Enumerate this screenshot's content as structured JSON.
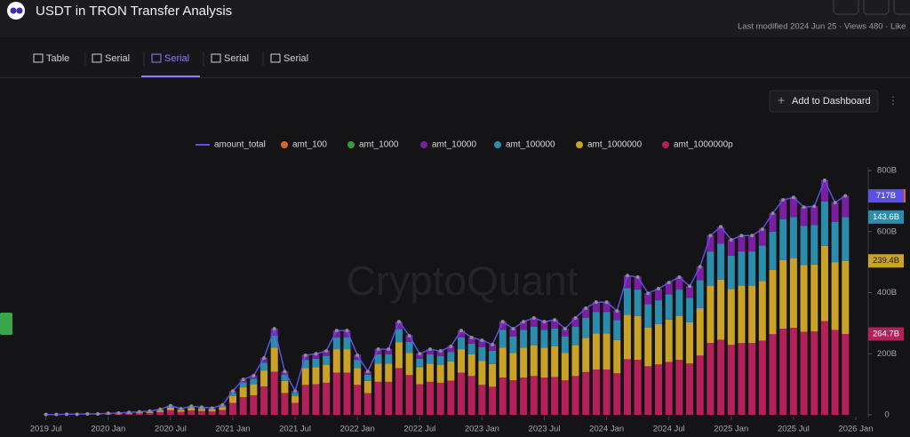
{
  "header": {
    "title": "USDT in TRON Transfer Analysis",
    "meta": "Last modified 2024 Jun 25 · Views 480 · Like"
  },
  "tabs": [
    "Table",
    "Serial",
    "Serial",
    "Serial",
    "Serial"
  ],
  "active_tab": 2,
  "button": "Add to Dashboard",
  "chart_data": {
    "type": "bar",
    "stacked": true,
    "watermark": "CryptoQuant",
    "xlim": [
      "2019-06",
      "2026-01"
    ],
    "xticks": [
      {
        "value": "2019-07",
        "label": "2019 Jul"
      },
      {
        "value": "2020-01",
        "label": "2020 Jan"
      },
      {
        "value": "2020-07",
        "label": "2020 Jul"
      },
      {
        "value": "2021-01",
        "label": "2021 Jan"
      },
      {
        "value": "2021-07",
        "label": "2021 Jul"
      },
      {
        "value": "2022-01",
        "label": "2022 Jan"
      },
      {
        "value": "2022-07",
        "label": "2022 Jul"
      },
      {
        "value": "2023-01",
        "label": "2023 Jan"
      },
      {
        "value": "2023-07",
        "label": "2023 Jul"
      },
      {
        "value": "2024-01",
        "label": "2024 Jan"
      },
      {
        "value": "2024-07",
        "label": "2024 Jul"
      },
      {
        "value": "2025-01",
        "label": "2025 Jan"
      },
      {
        "value": "2025-07",
        "label": "2025 Jul"
      },
      {
        "value": "2026-01",
        "label": "2026 Jan"
      }
    ],
    "ylim": [
      0,
      800
    ],
    "yticks": [
      0,
      {
        "value": 200,
        "label": "200B"
      },
      {
        "value": 400,
        "label": "400B"
      },
      {
        "value": 600,
        "label": "600B"
      },
      {
        "value": 800,
        "label": "800B"
      }
    ],
    "y_axis_side": "right",
    "grid": false,
    "legend_position": "top",
    "x": [
      "2019-07",
      "2019-08",
      "2019-09",
      "2019-10",
      "2019-11",
      "2019-12",
      "2020-01",
      "2020-02",
      "2020-03",
      "2020-04",
      "2020-05",
      "2020-06",
      "2020-07",
      "2020-08",
      "2020-09",
      "2020-10",
      "2020-11",
      "2020-12",
      "2021-01",
      "2021-02",
      "2021-03",
      "2021-04",
      "2021-05",
      "2021-06",
      "2021-07",
      "2021-08",
      "2021-09",
      "2021-10",
      "2021-11",
      "2021-12",
      "2022-01",
      "2022-02",
      "2022-03",
      "2022-04",
      "2022-05",
      "2022-06",
      "2022-07",
      "2022-08",
      "2022-09",
      "2022-10",
      "2022-11",
      "2022-12",
      "2023-01",
      "2023-02",
      "2023-03",
      "2023-04",
      "2023-05",
      "2023-06",
      "2023-07",
      "2023-08",
      "2023-09",
      "2023-10",
      "2023-11",
      "2023-12",
      "2024-01",
      "2024-02",
      "2024-03",
      "2024-04",
      "2024-05",
      "2024-06",
      "2024-07",
      "2024-08",
      "2024-09",
      "2024-10",
      "2024-11",
      "2024-12",
      "2025-01",
      "2025-02",
      "2025-03",
      "2025-04",
      "2025-05",
      "2025-06",
      "2025-07",
      "2025-08",
      "2025-09",
      "2025-10",
      "2025-11",
      "2025-12"
    ],
    "series": [
      {
        "name": "amount_total",
        "type": "line",
        "color": "#5b4fe6",
        "values": [
          1,
          1,
          2,
          2,
          3,
          3,
          5,
          6,
          8,
          10,
          12,
          18,
          30,
          20,
          28,
          25,
          22,
          32,
          78,
          116,
          128,
          186,
          282,
          142,
          78,
          195,
          200,
          209,
          276,
          276,
          195,
          142,
          215,
          215,
          305,
          259,
          200,
          215,
          209,
          224,
          276,
          253,
          244,
          230,
          305,
          282,
          305,
          317,
          305,
          311,
          282,
          317,
          349,
          369,
          369,
          340,
          456,
          451,
          398,
          413,
          433,
          451,
          421,
          485,
          587,
          616,
          573,
          587,
          587,
          608,
          660,
          704,
          712,
          680,
          683,
          768,
          695,
          717
        ],
        "value_labels": [
          null,
          null,
          null,
          null,
          null,
          null,
          null,
          null,
          null,
          null,
          null,
          null,
          null,
          null,
          null,
          null,
          null,
          null,
          null,
          null,
          null,
          null,
          null,
          null,
          null,
          null,
          null,
          null,
          null,
          null,
          null,
          null,
          null,
          null,
          null,
          null,
          null,
          null,
          null,
          null,
          null,
          null,
          null,
          null,
          null,
          null,
          null,
          null,
          null,
          null,
          null,
          null,
          null,
          null,
          null,
          null,
          null,
          null,
          null,
          null,
          null,
          null,
          null,
          null,
          null,
          null,
          null,
          null,
          null,
          null,
          null,
          null,
          null,
          null,
          null,
          null,
          null,
          "717B"
        ]
      },
      {
        "name": "amt_100",
        "color": "#e0622a",
        "values": [
          0.1,
          0.1,
          0.1,
          0.1,
          0.1,
          0.1,
          0.1,
          0.1,
          0.1,
          0.1,
          0.1,
          0.1,
          0.1,
          0.1,
          0.1,
          0.1,
          0.1,
          0.1,
          0.1,
          0.1,
          0.1,
          0.1,
          0.1,
          0.1,
          0.1,
          0.1,
          0.1,
          0.1,
          0.1,
          0.1,
          0.1,
          0.1,
          0.1,
          0.1,
          0.1,
          0.1,
          0.1,
          0.1,
          0.1,
          0.1,
          0.1,
          0.1,
          0.1,
          0.1,
          0.1,
          0.1,
          0.1,
          0.1,
          0.1,
          0.1,
          0.1,
          0.1,
          0.1,
          0.1,
          0.1,
          0.1,
          0.1,
          0.1,
          0.1,
          0.1,
          0.1,
          0.1,
          0.1,
          0.1,
          0.1,
          0.1,
          0.1,
          0.1,
          0.1,
          0.1,
          0.1,
          0.1,
          0.1,
          0.1,
          0.1,
          0.1,
          0.1,
          0.1
        ]
      },
      {
        "name": "amt_1000",
        "color": "#3a9a3a",
        "values": [
          0.5,
          0.5,
          0.5,
          0.5,
          0.5,
          0.5,
          0.5,
          0.5,
          0.5,
          0.5,
          0.5,
          0.5,
          0.5,
          0.5,
          0.5,
          0.5,
          0.5,
          0.5,
          0.5,
          0.5,
          0.5,
          0.5,
          0.5,
          0.5,
          0.5,
          0.5,
          0.5,
          0.5,
          0.5,
          0.5,
          0.5,
          0.5,
          0.5,
          0.5,
          0.5,
          0.5,
          0.5,
          0.5,
          0.5,
          0.5,
          0.5,
          0.5,
          0.5,
          0.5,
          0.5,
          0.5,
          0.5,
          0.5,
          0.5,
          0.5,
          0.5,
          0.5,
          0.5,
          0.5,
          0.5,
          0.5,
          0.5,
          0.5,
          0.5,
          0.5,
          0.5,
          0.5,
          0.5,
          0.5,
          0.5,
          0.5,
          0.5,
          0.5,
          0.5,
          0.5,
          0.5,
          0.5,
          0.5,
          0.5,
          0.5,
          0.5,
          0.5,
          0.5
        ]
      },
      {
        "name": "amt_10000",
        "color": "#7b1fa2",
        "values": [
          0.1,
          0.1,
          0.1,
          0.1,
          0.3,
          0.3,
          0.4,
          0.5,
          0.7,
          0.8,
          1,
          1.4,
          2.4,
          1.6,
          2.2,
          2,
          1.8,
          2.6,
          6,
          9,
          10,
          15,
          23,
          11,
          6,
          16,
          16,
          17,
          22,
          22,
          16,
          11,
          17,
          17,
          24,
          21,
          16,
          17,
          17,
          18,
          22,
          20,
          22,
          21,
          27,
          25,
          27,
          29,
          27,
          28,
          25,
          29,
          31,
          33,
          33,
          31,
          41,
          41,
          36,
          37,
          39,
          41,
          38,
          44,
          53,
          55,
          52,
          53,
          53,
          55,
          59,
          63,
          64,
          61,
          61,
          69,
          63,
          69
        ]
      },
      {
        "name": "amt_100000",
        "color": "#2b8cab",
        "values": [
          0.1,
          0.1,
          0.3,
          0.3,
          0.4,
          0.4,
          0.7,
          0.8,
          1.1,
          1.4,
          1.7,
          2.5,
          4.2,
          2.8,
          3.9,
          3.5,
          3.1,
          4.5,
          11,
          16,
          18,
          26,
          39,
          20,
          11,
          27,
          28,
          29,
          39,
          39,
          27,
          20,
          30,
          30,
          43,
          36,
          28,
          30,
          29,
          31,
          39,
          35,
          46,
          44,
          58,
          54,
          58,
          60,
          58,
          59,
          54,
          60,
          66,
          70,
          70,
          65,
          87,
          86,
          76,
          78,
          82,
          86,
          80,
          92,
          112,
          117,
          109,
          112,
          112,
          116,
          125,
          134,
          135,
          129,
          130,
          146,
          132,
          143.6
        ],
        "value_labels": [
          null,
          null,
          null,
          null,
          null,
          null,
          null,
          null,
          null,
          null,
          null,
          null,
          null,
          null,
          null,
          null,
          null,
          null,
          null,
          null,
          null,
          null,
          null,
          null,
          null,
          null,
          null,
          null,
          null,
          null,
          null,
          null,
          null,
          null,
          null,
          null,
          null,
          null,
          null,
          null,
          null,
          null,
          null,
          null,
          null,
          null,
          null,
          null,
          null,
          null,
          null,
          null,
          null,
          null,
          null,
          null,
          null,
          null,
          null,
          null,
          null,
          null,
          null,
          null,
          null,
          null,
          null,
          null,
          null,
          null,
          null,
          null,
          null,
          null,
          null,
          null,
          null,
          "143.6B"
        ]
      },
      {
        "name": "amt_1000000",
        "color": "#c9a227",
        "values": [
          0.3,
          0.3,
          0.6,
          0.6,
          0.8,
          0.8,
          1.4,
          1.7,
          2.2,
          2.8,
          3.4,
          5,
          8.4,
          5.6,
          7.8,
          7,
          6.2,
          9,
          22,
          32,
          36,
          52,
          79,
          40,
          22,
          55,
          56,
          59,
          77,
          77,
          55,
          40,
          60,
          60,
          85,
          73,
          56,
          60,
          59,
          63,
          77,
          71,
          78,
          74,
          98,
          90,
          98,
          101,
          98,
          100,
          90,
          101,
          112,
          118,
          118,
          109,
          146,
          144,
          127,
          132,
          139,
          144,
          135,
          155,
          188,
          197,
          183,
          188,
          188,
          195,
          211,
          225,
          228,
          218,
          219,
          246,
          222,
          239.4
        ],
        "value_labels": [
          null,
          null,
          null,
          null,
          null,
          null,
          null,
          null,
          null,
          null,
          null,
          null,
          null,
          null,
          null,
          null,
          null,
          null,
          null,
          null,
          null,
          null,
          null,
          null,
          null,
          null,
          null,
          null,
          null,
          null,
          null,
          null,
          null,
          null,
          null,
          null,
          null,
          null,
          null,
          null,
          null,
          null,
          null,
          null,
          null,
          null,
          null,
          null,
          null,
          null,
          null,
          null,
          null,
          null,
          null,
          null,
          null,
          null,
          null,
          null,
          null,
          null,
          null,
          null,
          null,
          null,
          null,
          null,
          null,
          null,
          null,
          null,
          null,
          null,
          null,
          null,
          null,
          "239.4B"
        ]
      },
      {
        "name": "amt_1000000p",
        "color": "#b3205a",
        "values": [
          0.5,
          0.5,
          1,
          1,
          1.5,
          1.5,
          2.5,
          3,
          4,
          5,
          6,
          9,
          15,
          10,
          14,
          12.5,
          11,
          16,
          39,
          58,
          64,
          93,
          141,
          71,
          39,
          98,
          100,
          105,
          138,
          138,
          98,
          71,
          108,
          108,
          153,
          130,
          100,
          108,
          105,
          112,
          138,
          127,
          98,
          92,
          122,
          113,
          122,
          127,
          122,
          124,
          113,
          127,
          140,
          148,
          148,
          136,
          182,
          180,
          159,
          165,
          173,
          180,
          168,
          194,
          235,
          246,
          229,
          235,
          235,
          243,
          264,
          282,
          285,
          272,
          273,
          307,
          278,
          264.7
        ],
        "value_labels": [
          null,
          null,
          null,
          null,
          null,
          null,
          null,
          null,
          null,
          null,
          null,
          null,
          null,
          null,
          null,
          null,
          null,
          null,
          null,
          null,
          null,
          null,
          null,
          null,
          null,
          null,
          null,
          null,
          null,
          null,
          null,
          null,
          null,
          null,
          null,
          null,
          null,
          null,
          null,
          null,
          null,
          null,
          null,
          null,
          null,
          null,
          null,
          null,
          null,
          null,
          null,
          null,
          null,
          null,
          null,
          null,
          null,
          null,
          null,
          null,
          null,
          null,
          null,
          null,
          null,
          null,
          null,
          null,
          null,
          null,
          null,
          null,
          null,
          null,
          null,
          null,
          null,
          "264.7B"
        ]
      }
    ]
  }
}
